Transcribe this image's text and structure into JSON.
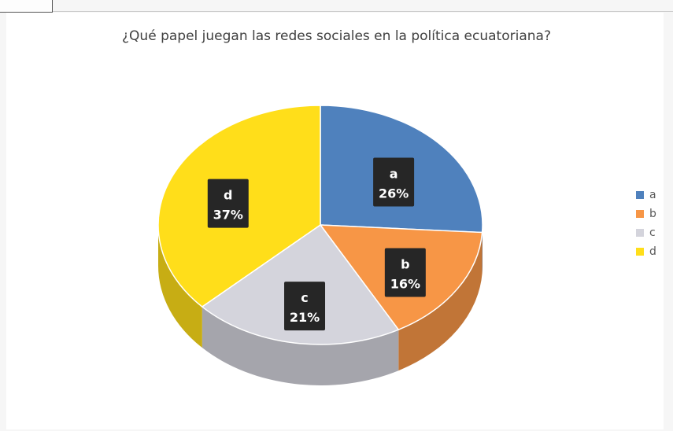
{
  "chart_data": {
    "type": "pie",
    "title": "¿Qué papel juegan las redes sociales en la política ecuatoriana?",
    "categories": [
      "a",
      "b",
      "c",
      "d"
    ],
    "values": [
      26,
      16,
      21,
      37
    ],
    "data_labels": [
      "26%",
      "16%",
      "21%",
      "37%"
    ],
    "colors": [
      "#4f81bd",
      "#f79646",
      "#d4d4dc",
      "#ffde1a"
    ],
    "legend_position": "right",
    "style": "3d"
  }
}
